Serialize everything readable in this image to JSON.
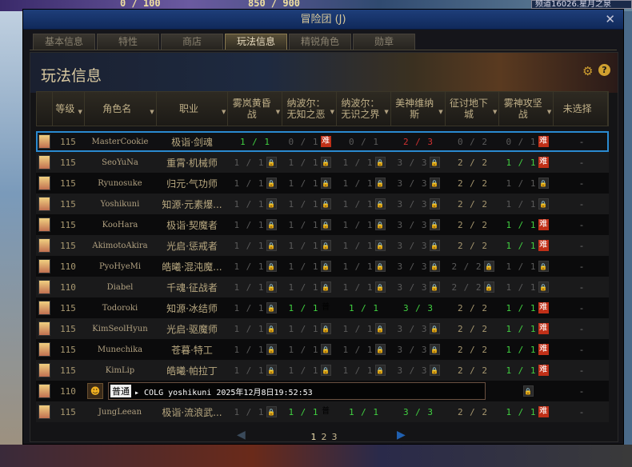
{
  "hud": {
    "mp": "0 / 100",
    "fatigue": "850 / 900",
    "channel": "频道16026.星月之泉"
  },
  "window": {
    "title": "冒险团 (J)",
    "close": "✕"
  },
  "tabs": [
    "基本信息",
    "特性",
    "商店",
    "玩法信息",
    "精锐角色",
    "勋章"
  ],
  "active_tab": 3,
  "panel": {
    "title": "玩法信息",
    "gear_icon": "⚙",
    "help": "?"
  },
  "columns": [
    "",
    "等级",
    "角色名",
    "职业",
    "雾岚黄昏\n战",
    "纳波尔：\n无知之恶",
    "纳波尔：\n无识之界",
    "美神维纳\n斯",
    "征讨地下\n城",
    "雾神攻坚\n战",
    "未选择"
  ],
  "colors": {
    "accent": "#2a8ad0",
    "green": "#40d040",
    "red": "#d03030",
    "hard_badge": "#c03018"
  },
  "badges": {
    "lock": "🔒",
    "hard": "难",
    "normal": "普"
  },
  "rows": [
    {
      "level": "115",
      "name": "MasterCookie",
      "job": "极诣·剑魂",
      "selected": true,
      "cells": [
        [
          "1 / 1",
          "g",
          ""
        ],
        [
          "0 / 1",
          "d",
          "hard"
        ],
        [
          "0 / 1",
          "d",
          ""
        ],
        [
          "2 / 3",
          "r",
          ""
        ],
        [
          "0 / 2",
          "d",
          ""
        ],
        [
          "0 / 1",
          "d",
          "hard"
        ]
      ],
      "last": "-"
    },
    {
      "level": "115",
      "name": "SeoYuNa",
      "job": "重霄·机械师",
      "cells": [
        [
          "1 / 1",
          "d",
          "lock"
        ],
        [
          "1 / 1",
          "d",
          "lock"
        ],
        [
          "1 / 1",
          "d",
          "lock"
        ],
        [
          "3 / 3",
          "d",
          "lock"
        ],
        [
          "2 / 2",
          "t",
          ""
        ],
        [
          "1 / 1",
          "g",
          "hard"
        ]
      ],
      "last": "-"
    },
    {
      "level": "115",
      "name": "Ryunosuke",
      "job": "归元·气功师",
      "cells": [
        [
          "1 / 1",
          "d",
          "lock"
        ],
        [
          "1 / 1",
          "d",
          "lock"
        ],
        [
          "1 / 1",
          "d",
          "lock"
        ],
        [
          "3 / 3",
          "d",
          "lock"
        ],
        [
          "2 / 2",
          "t",
          ""
        ],
        [
          "1 / 1",
          "d",
          "lock"
        ]
      ],
      "last": "-"
    },
    {
      "level": "115",
      "name": "Yoshikuni",
      "job": "知源·元素爆...",
      "cells": [
        [
          "1 / 1",
          "d",
          "lock"
        ],
        [
          "1 / 1",
          "d",
          "lock"
        ],
        [
          "1 / 1",
          "d",
          "lock"
        ],
        [
          "3 / 3",
          "d",
          "lock"
        ],
        [
          "2 / 2",
          "t",
          ""
        ],
        [
          "1 / 1",
          "d",
          "lock"
        ]
      ],
      "last": "-"
    },
    {
      "level": "115",
      "name": "KooHara",
      "job": "极诣·契魔者",
      "cells": [
        [
          "1 / 1",
          "d",
          "lock"
        ],
        [
          "1 / 1",
          "d",
          "lock"
        ],
        [
          "1 / 1",
          "d",
          "lock"
        ],
        [
          "3 / 3",
          "d",
          "lock"
        ],
        [
          "2 / 2",
          "t",
          ""
        ],
        [
          "1 / 1",
          "g",
          "hard"
        ]
      ],
      "last": "-"
    },
    {
      "level": "115",
      "name": "AkimotoAkira",
      "job": "光启·惩戒者",
      "cells": [
        [
          "1 / 1",
          "d",
          "lock"
        ],
        [
          "1 / 1",
          "d",
          "lock"
        ],
        [
          "1 / 1",
          "d",
          "lock"
        ],
        [
          "3 / 3",
          "d",
          "lock"
        ],
        [
          "2 / 2",
          "t",
          ""
        ],
        [
          "1 / 1",
          "g",
          "hard"
        ]
      ],
      "last": "-"
    },
    {
      "level": "110",
      "name": "PyoHyeMi",
      "job": "皓曦·混沌魔...",
      "cells": [
        [
          "1 / 1",
          "d",
          "lock"
        ],
        [
          "1 / 1",
          "d",
          "lock"
        ],
        [
          "1 / 1",
          "d",
          "lock"
        ],
        [
          "3 / 3",
          "d",
          "lock"
        ],
        [
          "2 / 2",
          "d",
          "lock"
        ],
        [
          "1 / 1",
          "d",
          "lock"
        ]
      ],
      "last": "-"
    },
    {
      "level": "110",
      "name": "Diabel",
      "job": "千魂·征战者",
      "cells": [
        [
          "1 / 1",
          "d",
          "lock"
        ],
        [
          "1 / 1",
          "d",
          "lock"
        ],
        [
          "1 / 1",
          "d",
          "lock"
        ],
        [
          "3 / 3",
          "d",
          "lock"
        ],
        [
          "2 / 2",
          "d",
          "lock"
        ],
        [
          "1 / 1",
          "d",
          "lock"
        ]
      ],
      "last": "-"
    },
    {
      "level": "115",
      "name": "Todoroki",
      "job": "知源·冰结师",
      "cells": [
        [
          "1 / 1",
          "d",
          "lock"
        ],
        [
          "1 / 1",
          "g",
          "normal"
        ],
        [
          "1 / 1",
          "g",
          ""
        ],
        [
          "3 / 3",
          "g",
          ""
        ],
        [
          "2 / 2",
          "t",
          ""
        ],
        [
          "1 / 1",
          "g",
          "hard"
        ]
      ],
      "last": "-"
    },
    {
      "level": "115",
      "name": "KimSeolHyun",
      "job": "光启·驱魔师",
      "cells": [
        [
          "1 / 1",
          "d",
          "lock"
        ],
        [
          "1 / 1",
          "d",
          "lock"
        ],
        [
          "1 / 1",
          "d",
          "lock"
        ],
        [
          "3 / 3",
          "d",
          "lock"
        ],
        [
          "2 / 2",
          "t",
          ""
        ],
        [
          "1 / 1",
          "g",
          "hard"
        ]
      ],
      "last": "-"
    },
    {
      "level": "115",
      "name": "Munechika",
      "job": "苍暮·特工",
      "cells": [
        [
          "1 / 1",
          "d",
          "lock"
        ],
        [
          "1 / 1",
          "d",
          "lock"
        ],
        [
          "1 / 1",
          "d",
          "lock"
        ],
        [
          "3 / 3",
          "d",
          "lock"
        ],
        [
          "2 / 2",
          "t",
          ""
        ],
        [
          "1 / 1",
          "g",
          "hard"
        ]
      ],
      "last": "-"
    },
    {
      "level": "115",
      "name": "KimLip",
      "job": "皓曦·帕拉丁",
      "cells": [
        [
          "1 / 1",
          "d",
          "lock"
        ],
        [
          "1 / 1",
          "d",
          "lock"
        ],
        [
          "1 / 1",
          "d",
          "lock"
        ],
        [
          "3 / 3",
          "d",
          "lock"
        ],
        [
          "2 / 2",
          "t",
          ""
        ],
        [
          "1 / 1",
          "g",
          "hard"
        ]
      ],
      "last": "-"
    },
    {
      "level": "110",
      "name": "",
      "job": "",
      "cells": [
        [
          "",
          "d",
          ""
        ],
        [
          "",
          "d",
          ""
        ],
        [
          "",
          "d",
          ""
        ],
        [
          "",
          "d",
          ""
        ],
        [
          "",
          "d",
          ""
        ],
        [
          "",
          "d",
          "lock"
        ]
      ],
      "last": "-"
    },
    {
      "level": "115",
      "name": "JungLeean",
      "job": "极诣·流浪武...",
      "cells": [
        [
          "1 / 1",
          "d",
          "lock"
        ],
        [
          "1 / 1",
          "g",
          "normal"
        ],
        [
          "1 / 1",
          "g",
          ""
        ],
        [
          "3 / 3",
          "g",
          ""
        ],
        [
          "2 / 2",
          "t",
          ""
        ],
        [
          "1 / 1",
          "g",
          "hard"
        ]
      ],
      "last": "-"
    }
  ],
  "chat": {
    "tag": "普通",
    "text": "▸ COLG yoshikuni 2025年12月8日19:52:53"
  },
  "pager": {
    "pages": [
      "1",
      "2",
      "3"
    ],
    "current": "1",
    "prev": "◀",
    "next": "▶"
  }
}
